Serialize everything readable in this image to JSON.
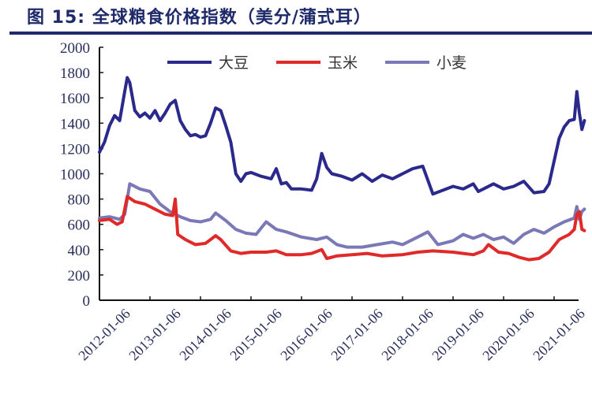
{
  "header": {
    "title": "图 15:  全球粮食价格指数（美分/蒲式耳）"
  },
  "chart_data": {
    "type": "line",
    "title": "图 15: 全球粮食价格指数（美分/蒲式耳）",
    "xlabel": "",
    "ylabel": "",
    "ylim": [
      0,
      2000
    ],
    "yticks": [
      0,
      200,
      400,
      600,
      800,
      1000,
      1200,
      1400,
      1600,
      1800,
      2000
    ],
    "xlim": [
      2012.0,
      2021.5
    ],
    "categories": [
      "2012-01-06",
      "2013-01-06",
      "2014-01-06",
      "2015-01-06",
      "2016-01-06",
      "2017-01-06",
      "2018-01-06",
      "2019-01-06",
      "2020-01-06",
      "2021-01-06"
    ],
    "grid": false,
    "legend_position": "top",
    "series": [
      {
        "name": "大豆",
        "color": "#2b2a8c",
        "x": [
          2012.0,
          2012.1,
          2012.2,
          2012.3,
          2012.4,
          2012.5,
          2012.55,
          2012.6,
          2012.7,
          2012.8,
          2012.9,
          2013.0,
          2013.1,
          2013.2,
          2013.3,
          2013.4,
          2013.5,
          2013.6,
          2013.7,
          2013.8,
          2013.9,
          2014.0,
          2014.1,
          2014.2,
          2014.3,
          2014.4,
          2014.5,
          2014.6,
          2014.7,
          2014.8,
          2014.9,
          2015.0,
          2015.2,
          2015.4,
          2015.5,
          2015.6,
          2015.7,
          2015.8,
          2016.0,
          2016.2,
          2016.3,
          2016.4,
          2016.5,
          2016.6,
          2016.8,
          2017.0,
          2017.2,
          2017.4,
          2017.6,
          2017.8,
          2018.0,
          2018.2,
          2018.4,
          2018.5,
          2018.6,
          2018.8,
          2019.0,
          2019.2,
          2019.4,
          2019.5,
          2019.6,
          2019.8,
          2020.0,
          2020.2,
          2020.4,
          2020.6,
          2020.8,
          2020.9,
          2021.0,
          2021.1,
          2021.2,
          2021.3,
          2021.4,
          2021.45,
          2021.5,
          2021.55,
          2021.6
        ],
        "values": [
          1170,
          1250,
          1380,
          1460,
          1420,
          1650,
          1760,
          1720,
          1500,
          1450,
          1480,
          1440,
          1500,
          1420,
          1480,
          1550,
          1580,
          1420,
          1350,
          1300,
          1310,
          1290,
          1300,
          1400,
          1520,
          1500,
          1380,
          1250,
          1000,
          940,
          1000,
          1010,
          980,
          960,
          1040,
          920,
          930,
          880,
          880,
          870,
          960,
          1160,
          1050,
          1000,
          980,
          950,
          1000,
          940,
          990,
          960,
          1000,
          1040,
          1060,
          950,
          840,
          870,
          900,
          880,
          920,
          860,
          880,
          920,
          880,
          900,
          940,
          850,
          860,
          920,
          1100,
          1280,
          1370,
          1420,
          1430,
          1650,
          1480,
          1350,
          1420
        ]
      },
      {
        "name": "玉米",
        "color": "#e02a2a",
        "x": [
          2012.0,
          2012.2,
          2012.35,
          2012.45,
          2012.55,
          2012.7,
          2012.9,
          2013.1,
          2013.3,
          2013.45,
          2013.5,
          2013.55,
          2013.7,
          2013.9,
          2014.1,
          2014.3,
          2014.4,
          2014.6,
          2014.8,
          2015.0,
          2015.3,
          2015.5,
          2015.7,
          2016.0,
          2016.2,
          2016.4,
          2016.5,
          2016.7,
          2017.0,
          2017.3,
          2017.6,
          2018.0,
          2018.3,
          2018.6,
          2019.0,
          2019.2,
          2019.4,
          2019.6,
          2019.7,
          2019.9,
          2020.1,
          2020.3,
          2020.5,
          2020.7,
          2020.9,
          2021.1,
          2021.3,
          2021.4,
          2021.45,
          2021.5,
          2021.55,
          2021.6
        ],
        "values": [
          630,
          640,
          600,
          620,
          820,
          780,
          760,
          720,
          680,
          670,
          800,
          520,
          480,
          440,
          450,
          510,
          480,
          390,
          370,
          380,
          380,
          390,
          360,
          360,
          370,
          400,
          330,
          350,
          360,
          370,
          350,
          360,
          380,
          390,
          380,
          370,
          360,
          390,
          440,
          380,
          370,
          340,
          320,
          330,
          380,
          480,
          520,
          560,
          680,
          700,
          560,
          550
        ]
      },
      {
        "name": "小麦",
        "color": "#7b78b8",
        "x": [
          2012.0,
          2012.2,
          2012.4,
          2012.5,
          2012.6,
          2012.8,
          2013.0,
          2013.2,
          2013.4,
          2013.6,
          2013.8,
          2014.0,
          2014.2,
          2014.3,
          2014.5,
          2014.7,
          2014.9,
          2015.1,
          2015.3,
          2015.5,
          2015.7,
          2016.0,
          2016.3,
          2016.5,
          2016.7,
          2016.9,
          2017.2,
          2017.5,
          2017.8,
          2018.0,
          2018.3,
          2018.5,
          2018.7,
          2019.0,
          2019.2,
          2019.4,
          2019.6,
          2019.8,
          2020.0,
          2020.2,
          2020.4,
          2020.6,
          2020.8,
          2021.0,
          2021.2,
          2021.4,
          2021.45,
          2021.5,
          2021.55,
          2021.6
        ],
        "values": [
          650,
          660,
          640,
          680,
          920,
          880,
          860,
          760,
          700,
          660,
          630,
          620,
          640,
          690,
          630,
          560,
          530,
          520,
          620,
          560,
          540,
          500,
          480,
          500,
          440,
          420,
          420,
          440,
          460,
          440,
          500,
          540,
          440,
          470,
          520,
          490,
          520,
          480,
          500,
          450,
          520,
          560,
          530,
          580,
          620,
          650,
          740,
          640,
          700,
          720
        ]
      }
    ]
  },
  "legend": {
    "items": [
      {
        "label": "大豆",
        "color": "#2b2a8c"
      },
      {
        "label": "玉米",
        "color": "#e02a2a"
      },
      {
        "label": "小麦",
        "color": "#7b78b8"
      }
    ]
  }
}
